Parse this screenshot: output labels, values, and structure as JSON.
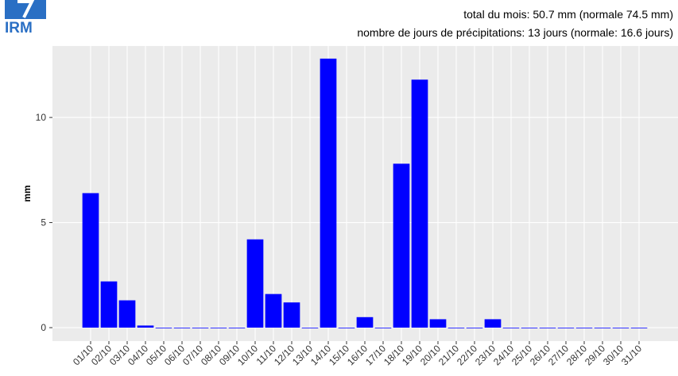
{
  "logo": "IRM",
  "chart_data": {
    "type": "bar",
    "annotations": [
      "total du mois: 50.7 mm (normale 74.5 mm)",
      "nombre de jours de précipitations: 13 jours (normale: 16.6 jours)"
    ],
    "y_label": "mm",
    "categories": [
      "01/10",
      "02/10",
      "03/10",
      "04/10",
      "05/10",
      "06/10",
      "07/10",
      "08/10",
      "09/10",
      "10/10",
      "11/10",
      "12/10",
      "13/10",
      "14/10",
      "15/10",
      "16/10",
      "17/10",
      "18/10",
      "19/10",
      "20/10",
      "21/10",
      "22/10",
      "23/10",
      "24/10",
      "25/10",
      "26/10",
      "27/10",
      "28/10",
      "29/10",
      "30/10",
      "31/10"
    ],
    "values": [
      6.4,
      2.2,
      1.3,
      0.1,
      0,
      0,
      0,
      0,
      0,
      4.2,
      1.6,
      1.2,
      0,
      12.8,
      0,
      0.5,
      0,
      7.8,
      11.8,
      0.4,
      0,
      0,
      0.4,
      0,
      0,
      0,
      0,
      0,
      0,
      0,
      0
    ],
    "color": "#0000ff",
    "ylim": [
      -0.64,
      13.4
    ],
    "yticks": [
      0,
      5,
      10
    ],
    "grid": true
  }
}
